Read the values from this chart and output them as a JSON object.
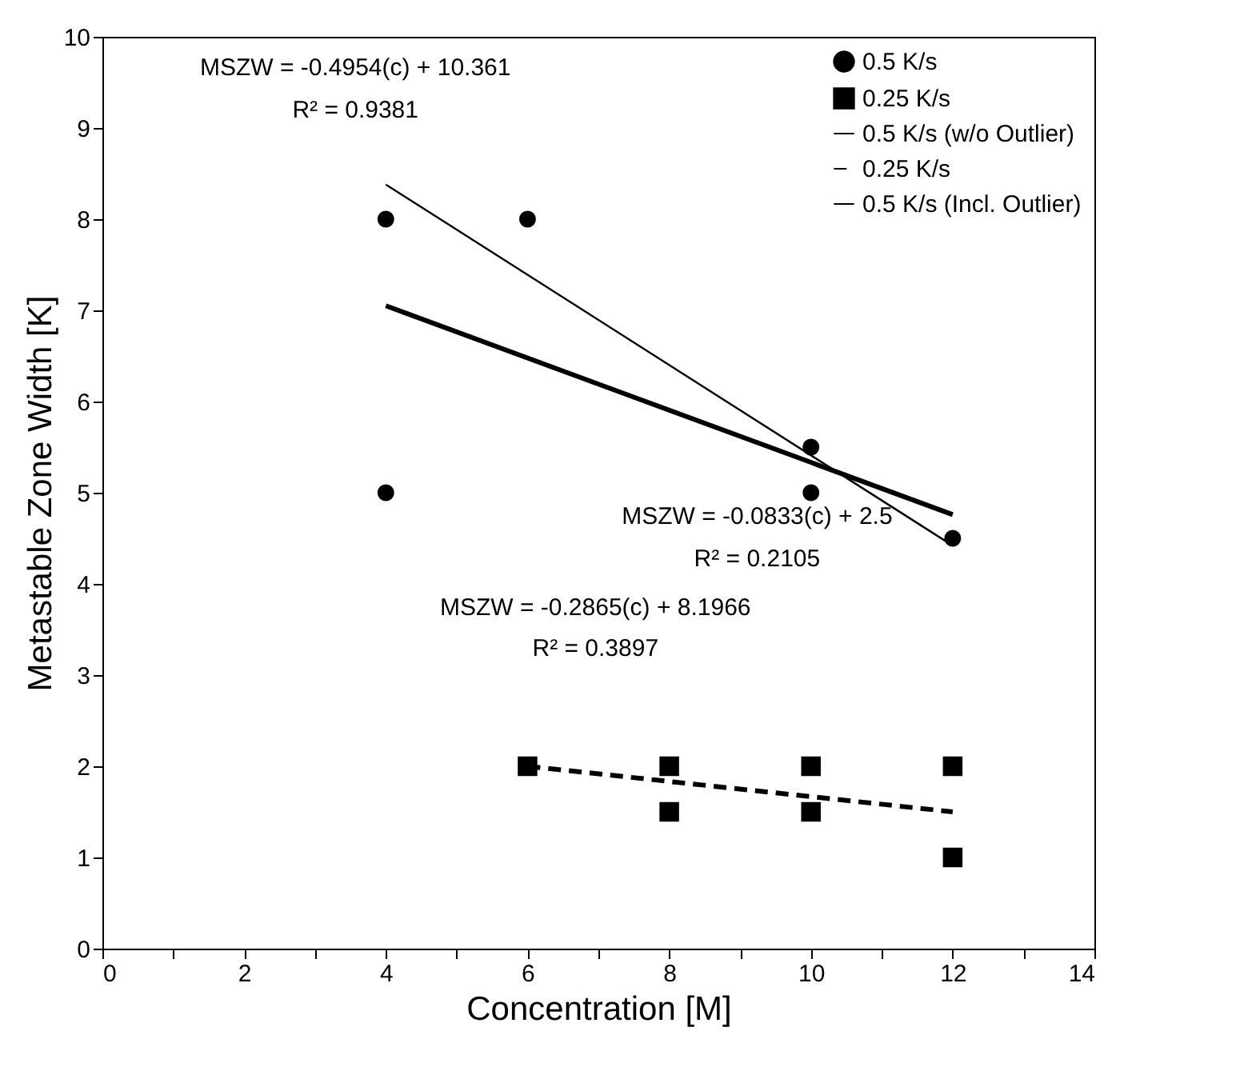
{
  "chart_data": {
    "type": "scatter",
    "xlabel": "Concentration [M]",
    "ylabel": "Metastable Zone Width [K]",
    "xlim": [
      0,
      14
    ],
    "ylim": [
      0,
      10
    ],
    "xticks": [
      0,
      {
        "value": 1,
        "label": null
      },
      2,
      {
        "value": 3,
        "label": null
      },
      4,
      {
        "value": 5,
        "label": null
      },
      6,
      {
        "value": 7,
        "label": null
      },
      8,
      {
        "value": 9,
        "label": null
      },
      10,
      {
        "value": 11,
        "label": null
      },
      12,
      {
        "value": 13,
        "label": null
      },
      14
    ],
    "yticks": [
      0,
      1,
      2,
      3,
      4,
      5,
      6,
      7,
      8,
      9,
      10
    ],
    "grid": false,
    "legend": "top right",
    "series": [
      {
        "name": "0.5 K/s",
        "type": "scatter",
        "marker": "circle",
        "color": "#000000",
        "x": [
          4,
          4,
          6,
          10,
          10,
          12
        ],
        "values": [
          8,
          5,
          8,
          5.5,
          5,
          4.5
        ]
      },
      {
        "name": "0.25 K/s",
        "type": "scatter",
        "marker": "square",
        "color": "#000000",
        "x": [
          6,
          8,
          8,
          10,
          10,
          12,
          12
        ],
        "values": [
          2,
          2,
          1.5,
          2,
          1.5,
          2,
          1
        ]
      },
      {
        "name": "0.5 K/s (w/o Outlier)",
        "type": "line",
        "marker": "none",
        "line_style": "solid",
        "color": "#000000",
        "x": [
          4,
          12
        ],
        "values": [
          8.38,
          4.42
        ]
      },
      {
        "name": "0.25 K/s",
        "type": "line",
        "marker": "none",
        "line_style": "dashed",
        "color": "#000000",
        "x": [
          6,
          12
        ],
        "values": [
          2.0,
          1.5
        ]
      },
      {
        "name": "0.5 K/s (Incl. Outlier)",
        "type": "line",
        "marker": "none",
        "line_style": "solid",
        "color": "#000000",
        "x": [
          4,
          12
        ],
        "values": [
          7.05,
          4.76
        ]
      }
    ],
    "annotations": [
      "MSZW = -0.4954(c) + 10.361",
      "R² = 0.9381",
      "MSZW = -0.2865(c) + 8.1966",
      "R² = 0.3897",
      "MSZW = -0.0833(c) + 2.5",
      "R² = 0.2105"
    ]
  }
}
